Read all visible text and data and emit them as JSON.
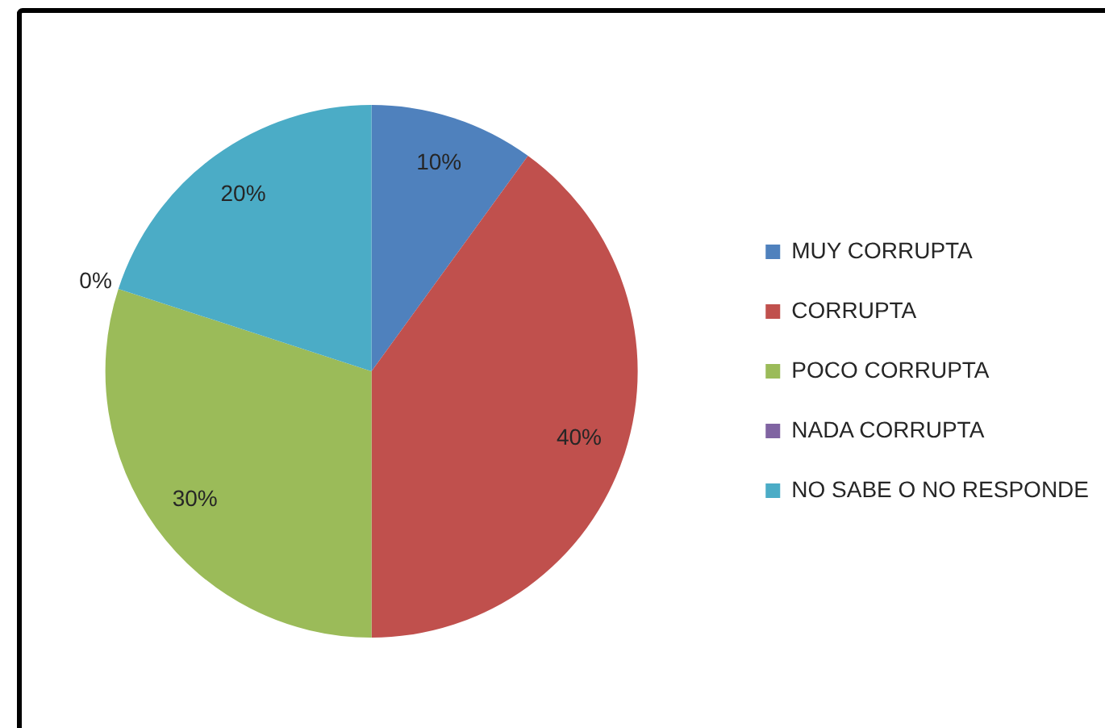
{
  "chart_data": {
    "type": "pie",
    "categories": [
      "MUY CORRUPTA",
      "CORRUPTA",
      "POCO CORRUPTA",
      "NADA CORRUPTA",
      "NO SABE O NO RESPONDE"
    ],
    "values": [
      10,
      40,
      30,
      0,
      20
    ],
    "colors": [
      "#4f81bd",
      "#c0504d",
      "#9bbb59",
      "#8064a2",
      "#4bacc6"
    ],
    "value_labels": [
      "10%",
      "40%",
      "30%",
      "0%",
      "20%"
    ],
    "legend": "right"
  }
}
